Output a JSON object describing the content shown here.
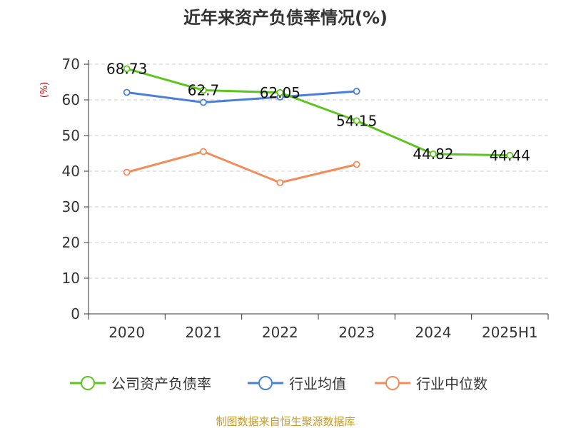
{
  "chart_data": {
    "type": "line",
    "title": "近年来资产负债率情况(%)",
    "ylabel": "(%)",
    "xlabel": "",
    "categories": [
      "2020",
      "2021",
      "2022",
      "2023",
      "2024",
      "2025H1"
    ],
    "ylim": [
      0,
      70
    ],
    "yticks": [
      0,
      10,
      20,
      30,
      40,
      50,
      60,
      70
    ],
    "grid": true,
    "legend_position": "bottom",
    "series": [
      {
        "name": "公司资产负债率",
        "color": "#5ec41e",
        "values": [
          68.73,
          62.7,
          62.05,
          54.15,
          44.82,
          44.44
        ],
        "labels": [
          "68.73",
          "62.7",
          "62.05",
          "54.15",
          "44.82",
          "44.44"
        ]
      },
      {
        "name": "行业均值",
        "color": "#4a7fd6",
        "values": [
          62.1,
          59.3,
          60.8,
          62.4,
          null,
          null
        ]
      },
      {
        "name": "行业中位数",
        "color": "#f28c5a",
        "values": [
          39.7,
          45.5,
          36.8,
          41.9,
          null,
          null
        ]
      }
    ],
    "source": "制图数据来自恒生聚源数据库"
  }
}
